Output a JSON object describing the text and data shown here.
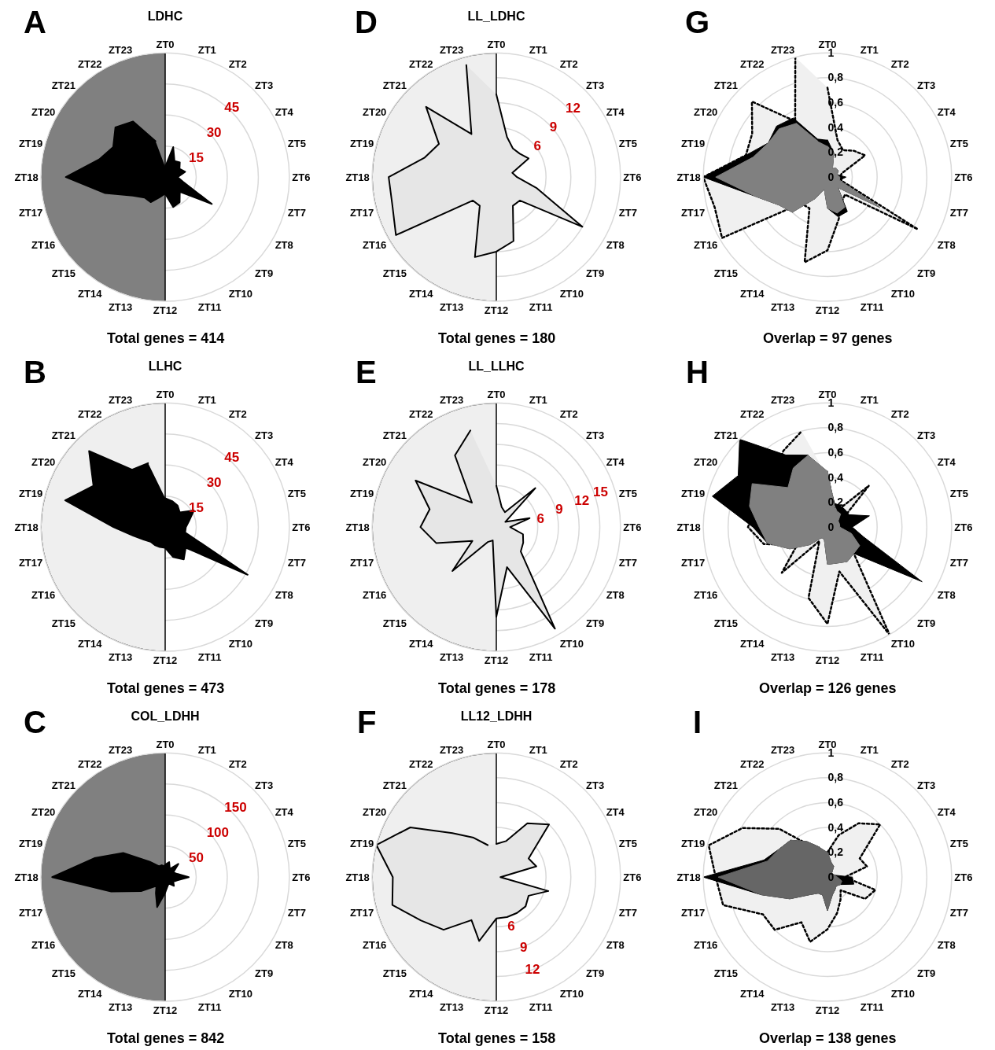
{
  "chart_data": [
    {
      "type": "radar",
      "title": "LDHC",
      "annotations": [
        "A",
        "Total genes = 414"
      ],
      "categories": [
        "ZT0",
        "ZT1",
        "ZT2",
        "ZT3",
        "ZT4",
        "ZT5",
        "ZT6",
        "ZT7",
        "ZT8",
        "ZT9",
        "ZT10",
        "ZT11",
        "ZT12",
        "ZT13",
        "ZT14",
        "ZT15",
        "ZT16",
        "ZT17",
        "ZT18",
        "ZT19",
        "ZT20",
        "ZT21",
        "ZT22",
        "ZT23"
      ],
      "ylim": [
        0,
        60
      ],
      "yticks": [
        15,
        30,
        45
      ],
      "grid": "y",
      "line_style": "solid",
      "series": [
        {
          "color": "#000000",
          "values": [
            5,
            15,
            9,
            10,
            8,
            10,
            6,
            9,
            26,
            10,
            14,
            15,
            8,
            10,
            14,
            14,
            18,
            30,
            48,
            33,
            29,
            34,
            31,
            18
          ]
        }
      ]
    },
    {
      "type": "radar",
      "title": "LL_LDHC",
      "annotations": [
        "D",
        "Total genes = 180"
      ],
      "categories": [
        "ZT0",
        "ZT1",
        "ZT2",
        "ZT3",
        "ZT4",
        "ZT5",
        "ZT6",
        "ZT7",
        "ZT8",
        "ZT9",
        "ZT10",
        "ZT11",
        "ZT12",
        "ZT13",
        "ZT14",
        "ZT15",
        "ZT16",
        "ZT17",
        "ZT18",
        "ZT19",
        "ZT20",
        "ZT21",
        "ZT22",
        "ZT23"
      ],
      "ylim": [
        0,
        15
      ],
      "yticks": [
        6,
        9,
        12
      ],
      "grid": "y",
      "line_style": "solid",
      "series": [
        {
          "color": "#e6e6e6",
          "values": [
            10,
            5,
            4,
            4,
            4.5,
            2,
            2.5,
            5,
            12,
            4,
            4,
            8,
            9,
            10,
            4,
            4,
            14,
            13,
            13,
            9,
            8,
            12,
            6,
            14
          ]
        }
      ]
    },
    {
      "type": "radar",
      "annotations": [
        "G",
        "Overlap = 97 genes"
      ],
      "categories": [
        "ZT0",
        "ZT1",
        "ZT2",
        "ZT3",
        "ZT4",
        "ZT5",
        "ZT6",
        "ZT7",
        "ZT8",
        "ZT9",
        "ZT10",
        "ZT11",
        "ZT12",
        "ZT13",
        "ZT14",
        "ZT15",
        "ZT16",
        "ZT17",
        "ZT18",
        "ZT19",
        "ZT20",
        "ZT21",
        "ZT22",
        "ZT23"
      ],
      "ylim": [
        0,
        1
      ],
      "yticks": [
        0,
        {
          "value": 0.2,
          "label": "0,2"
        },
        {
          "value": 0.4,
          "label": "0,4"
        },
        {
          "value": 0.6,
          "label": "0,6"
        },
        {
          "value": 0.8,
          "label": "0,8"
        },
        1
      ],
      "grid": "y",
      "series": [
        {
          "color": "#f0f0f0",
          "line_style": "dotted",
          "values": [
            0.72,
            0.31,
            0.25,
            0.3,
            0.35,
            0.12,
            0.1,
            0.12,
            0.84,
            0.2,
            0.23,
            0.35,
            0.59,
            0.71,
            0.29,
            0.3,
            0.98,
            0.94,
            1.0,
            0.68,
            0.7,
            0.86,
            0.52,
            1.0
          ]
        },
        {
          "color": "#000000",
          "values": [
            0.3,
            0.2,
            0.08,
            0.1,
            0.1,
            0.08,
            0.15,
            0.1,
            0.49,
            0.12,
            0.32,
            0.33,
            0.25,
            0.1,
            0.2,
            0.4,
            0.45,
            0.6,
            1.0,
            0.68,
            0.55,
            0.58,
            0.55,
            0.32
          ]
        },
        {
          "color": "#808080",
          "values": [
            0.25,
            0.2,
            0.08,
            0.1,
            0.1,
            0.08,
            0.1,
            0.1,
            0.49,
            0.12,
            0.28,
            0.3,
            0.25,
            0.1,
            0.2,
            0.4,
            0.45,
            0.6,
            0.9,
            0.62,
            0.55,
            0.55,
            0.5,
            0.3
          ]
        }
      ]
    },
    {
      "type": "radar",
      "title": "LLHC",
      "annotations": [
        "B",
        "Total genes = 473"
      ],
      "categories": [
        "ZT0",
        "ZT1",
        "ZT2",
        "ZT3",
        "ZT4",
        "ZT5",
        "ZT6",
        "ZT7",
        "ZT8",
        "ZT9",
        "ZT10",
        "ZT11",
        "ZT12",
        "ZT13",
        "ZT14",
        "ZT15",
        "ZT16",
        "ZT17",
        "ZT18",
        "ZT19",
        "ZT20",
        "ZT21",
        "ZT22",
        "ZT23"
      ],
      "ylim": [
        0,
        60
      ],
      "yticks": [
        15,
        30,
        45
      ],
      "grid": "y",
      "line_style": "solid",
      "series": [
        {
          "color": "#000000",
          "values": [
            14,
            13,
            12,
            10,
            16,
            12,
            10,
            10,
            46,
            14,
            18,
            15,
            10,
            10,
            10,
            10,
            12,
            16,
            25,
            50,
            40,
            52,
            32,
            32
          ]
        }
      ]
    },
    {
      "type": "radar",
      "title": "LL_LLHC",
      "annotations": [
        "E",
        "Total genes = 178"
      ],
      "categories": [
        "ZT0",
        "ZT1",
        "ZT2",
        "ZT3",
        "ZT4",
        "ZT5",
        "ZT6",
        "ZT7",
        "ZT8",
        "ZT9",
        "ZT10",
        "ZT11",
        "ZT12",
        "ZT13",
        "ZT14",
        "ZT15",
        "ZT16",
        "ZT17",
        "ZT18",
        "ZT19",
        "ZT20",
        "ZT21",
        "ZT22",
        "ZT23"
      ],
      "ylim": [
        0,
        18
      ],
      "yticks": [
        6,
        9,
        12,
        15
      ],
      "grid": "y",
      "line_style": "solid",
      "series": [
        {
          "color": "#e6e6e6",
          "values": [
            6,
            3,
            2.5,
            8,
            1.5,
            5,
            2,
            4,
            4.5,
            5,
            17,
            6,
            13,
            2,
            2.5,
            9,
            4,
            9,
            11,
            10,
            13.5,
            5,
            12,
            14.5
          ]
        }
      ]
    },
    {
      "type": "radar",
      "annotations": [
        "H",
        "Overlap = 126 genes"
      ],
      "categories": [
        "ZT0",
        "ZT1",
        "ZT2",
        "ZT3",
        "ZT4",
        "ZT5",
        "ZT6",
        "ZT7",
        "ZT8",
        "ZT9",
        "ZT10",
        "ZT11",
        "ZT12",
        "ZT13",
        "ZT14",
        "ZT15",
        "ZT16",
        "ZT17",
        "ZT18",
        "ZT19",
        "ZT20",
        "ZT21",
        "ZT22",
        "ZT23"
      ],
      "ylim": [
        0,
        1
      ],
      "yticks": [
        0,
        {
          "value": 0.2,
          "label": "0,2"
        },
        {
          "value": 0.4,
          "label": "0,4"
        },
        {
          "value": 0.6,
          "label": "0,6"
        },
        {
          "value": 0.8,
          "label": "0,8"
        },
        1
      ],
      "grid": "y",
      "series": [
        {
          "color": "#f0f0f0",
          "line_style": "dotted",
          "values": [
            0.4,
            0.2,
            0.15,
            0.47,
            0.15,
            0.2,
            0.12,
            0.2,
            0.25,
            0.3,
            1.0,
            0.37,
            0.78,
            0.59,
            0.13,
            0.52,
            0.28,
            0.53,
            0.64,
            0.6,
            0.7,
            0.6,
            0.71,
            0.8
          ]
        },
        {
          "color": "#000000",
          "values": [
            0.45,
            0.2,
            0.2,
            0.2,
            0.2,
            0.35,
            0.2,
            0.3,
            0.88,
            0.3,
            0.32,
            0.3,
            0.3,
            0.1,
            0.1,
            0.2,
            0.35,
            0.5,
            0.6,
            0.96,
            0.83,
            1.0,
            0.67,
            0.6
          ]
        },
        {
          "color": "#808080",
          "values": [
            0.45,
            0.2,
            0.15,
            0.15,
            0.1,
            0.1,
            0.1,
            0.2,
            0.3,
            0.3,
            0.32,
            0.3,
            0.3,
            0.1,
            0.1,
            0.2,
            0.35,
            0.5,
            0.55,
            0.65,
            0.7,
            0.45,
            0.55,
            0.6
          ]
        }
      ]
    },
    {
      "type": "radar",
      "title": "COL_LDHH",
      "annotations": [
        "C",
        "Total genes = 842"
      ],
      "categories": [
        "ZT0",
        "ZT1",
        "ZT2",
        "ZT3",
        "ZT4",
        "ZT5",
        "ZT6",
        "ZT7",
        "ZT8",
        "ZT9",
        "ZT10",
        "ZT11",
        "ZT12",
        "ZT13",
        "ZT14",
        "ZT15",
        "ZT16",
        "ZT17",
        "ZT18",
        "ZT19",
        "ZT20",
        "ZT21",
        "ZT22",
        "ZT23"
      ],
      "ylim": [
        0,
        200
      ],
      "yticks": [
        50,
        100,
        150
      ],
      "grid": "y",
      "line_style": "solid",
      "series": [
        {
          "color": "#000000",
          "values": [
            20,
            25,
            15,
            30,
            15,
            20,
            38,
            20,
            15,
            20,
            12,
            15,
            25,
            50,
            30,
            20,
            45,
            90,
            182,
            118,
            78,
            35,
            20,
            20
          ]
        }
      ]
    },
    {
      "type": "radar",
      "title": "LL12_LDHH",
      "annotations": [
        "F",
        "Total genes = 158"
      ],
      "categories": [
        "ZT0",
        "ZT1",
        "ZT2",
        "ZT3",
        "ZT4",
        "ZT5",
        "ZT6",
        "ZT7",
        "ZT8",
        "ZT9",
        "ZT10",
        "ZT11",
        "ZT12",
        "ZT13",
        "ZT14",
        "ZT15",
        "ZT16",
        "ZT17",
        "ZT18",
        "ZT19",
        "ZT20",
        "ZT21",
        "ZT22",
        "ZT23"
      ],
      "ylim": [
        0,
        15
      ],
      "yticks": [
        6,
        9,
        12
      ],
      "grid": "y",
      "line_style": "solid",
      "series": [
        {
          "color": "#e6e6e6",
          "values": [
            4,
            4.5,
            7.5,
            9,
            4.5,
            5,
            0.5,
            6.5,
            4.5,
            5,
            5,
            5,
            5,
            8,
            6,
            9,
            10.5,
            13,
            12.5,
            15,
            12,
            7.5,
            5.5,
            4
          ]
        }
      ]
    },
    {
      "type": "radar",
      "annotations": [
        "I",
        "Overlap = 138 genes"
      ],
      "categories": [
        "ZT0",
        "ZT1",
        "ZT2",
        "ZT3",
        "ZT4",
        "ZT5",
        "ZT6",
        "ZT7",
        "ZT8",
        "ZT9",
        "ZT10",
        "ZT11",
        "ZT12",
        "ZT13",
        "ZT14",
        "ZT15",
        "ZT16",
        "ZT17",
        "ZT18",
        "ZT19",
        "ZT20",
        "ZT21",
        "ZT22",
        "ZT23"
      ],
      "ylim": [
        0,
        1
      ],
      "yticks": [
        0,
        {
          "value": 0.2,
          "label": "0,2"
        },
        {
          "value": 0.4,
          "label": "0,4"
        },
        {
          "value": 0.6,
          "label": "0,6"
        },
        {
          "value": 0.8,
          "label": "0,8"
        },
        1
      ],
      "grid": "y",
      "series": [
        {
          "color": "#f0f0f0",
          "line_style": "dotted",
          "values": [
            0.2,
            0.35,
            0.5,
            0.6,
            0.3,
            0.33,
            0.14,
            0.4,
            0.35,
            0.15,
            0.21,
            0.3,
            0.42,
            0.54,
            0.42,
            0.6,
            0.6,
            0.87,
            0.9,
            0.99,
            0.79,
            0.55,
            0.3,
            0.2
          ]
        },
        {
          "color": "#000000",
          "values": [
            0.2,
            0.12,
            0.1,
            0.05,
            0.05,
            0.06,
            0.2,
            0.22,
            0.12,
            0.1,
            0.12,
            0.15,
            0.27,
            0.15,
            0.15,
            0.2,
            0.35,
            0.55,
            1.0,
            0.53,
            0.45,
            0.42,
            0.33,
            0.25
          ]
        },
        {
          "color": "#666666",
          "values": [
            0.2,
            0.12,
            0.1,
            0.05,
            0.05,
            0.06,
            0.08,
            0.12,
            0.12,
            0.1,
            0.12,
            0.15,
            0.27,
            0.15,
            0.15,
            0.2,
            0.35,
            0.55,
            0.88,
            0.5,
            0.45,
            0.42,
            0.33,
            0.25
          ]
        }
      ]
    }
  ]
}
